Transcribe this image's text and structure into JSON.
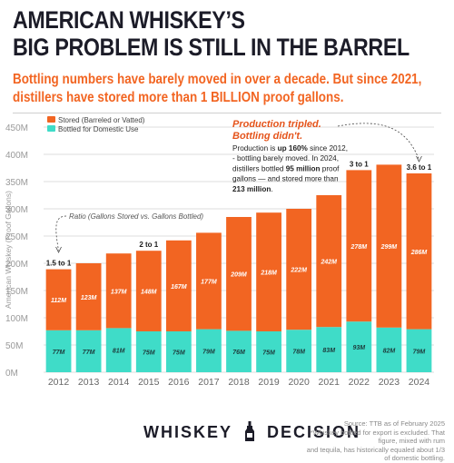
{
  "header": {
    "title_line1": "AMERICAN WHISKEY’S",
    "title_line2": "BIG PROBLEM IS STILL IN THE BARREL",
    "subtitle": "Bottling numbers have barely moved in over a decade. But since 2021, distillers have stored more than 1 BILLION proof gallons."
  },
  "annotations": {
    "ratio_note": "Ratio (Gallons Stored vs. Gallons Bottled)",
    "production_head_1": "Production tripled.",
    "production_head_2": "Bottling didn't.",
    "production_body": [
      [
        {
          "t": "Production is "
        },
        {
          "t": "up 160%",
          "b": true
        },
        {
          "t": " since 2012,"
        }
      ],
      [
        {
          "t": "- bottling barely moved. In 2024,"
        }
      ],
      [
        {
          "t": "distillers bottled "
        },
        {
          "t": "95 million",
          "b": true
        },
        {
          "t": " proof"
        }
      ],
      [
        {
          "t": "gallons — and stored more than"
        }
      ],
      [
        {
          "t": "213 million",
          "b": true
        },
        {
          "t": "."
        }
      ]
    ]
  },
  "footer": {
    "brand_left": "WHISKEY",
    "brand_right": "DECISION",
    "source_line1": "Source: TTB as of February 2025",
    "source_line2": "*Whiskey bottled for export is excluded. That figure, mixed with rum",
    "source_line3": "and tequila, has historically equaled about 1/3 of domestic bottling."
  },
  "colors": {
    "stored": "#f26522",
    "bottled": "#3fdcc8",
    "title": "#1c1c28",
    "accent_text": "#e5541b"
  },
  "chart_data": {
    "type": "bar",
    "stacked": true,
    "categories": [
      "2012",
      "2013",
      "2014",
      "2015",
      "2016",
      "2017",
      "2018",
      "2019",
      "2020",
      "2021",
      "2022",
      "2023",
      "2024"
    ],
    "series": [
      {
        "name": "Bottled for Domestic Use",
        "values": [
          77,
          77,
          81,
          75,
          75,
          79,
          76,
          75,
          78,
          83,
          93,
          82,
          79
        ],
        "labels": [
          "77M",
          "77M",
          "81M",
          "75M",
          "75M",
          "79M",
          "76M",
          "75M",
          "78M",
          "83M",
          "93M",
          "82M",
          "79M"
        ]
      },
      {
        "name": "Stored (Barreled or Vatted)",
        "values": [
          112,
          123,
          137,
          148,
          167,
          177,
          209,
          218,
          222,
          242,
          278,
          299,
          286
        ],
        "labels": [
          "112M",
          "123M",
          "137M",
          "148M",
          "167M",
          "177M",
          "209M",
          "218M",
          "222M",
          "242M",
          "278M",
          "299M",
          "286M"
        ]
      }
    ],
    "ylabel": "American Whiskey (Proof Gallons)",
    "ylim": [
      0,
      450
    ],
    "yticks": [
      0,
      50,
      100,
      150,
      200,
      250,
      300,
      350,
      400,
      450
    ],
    "ytick_labels": [
      "0M",
      "50M",
      "100M",
      "150M",
      "200M",
      "250M",
      "300M",
      "350M",
      "400M",
      "450M"
    ],
    "grid": true,
    "legend": "top-left",
    "ratio_labels": [
      {
        "year": "2012",
        "text": "1.5 to 1"
      },
      {
        "year": "2015",
        "text": "2 to 1"
      },
      {
        "year": "2022",
        "text": "3 to 1"
      },
      {
        "year": "2024",
        "text": "3.6 to 1"
      }
    ]
  }
}
